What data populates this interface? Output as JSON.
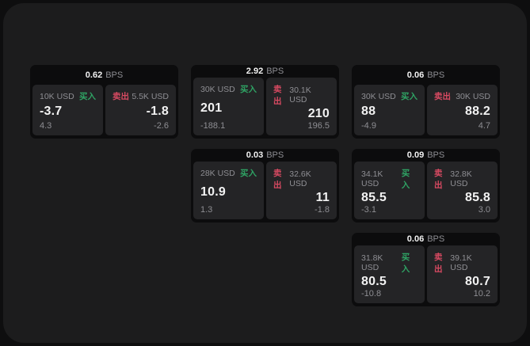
{
  "colors": {
    "bg_outer": "#0e0e0f",
    "bg_page": "#1c1c1d",
    "card_bg": "#0c0c0d",
    "panel_bg": "#242426",
    "text_primary": "#f2f2f2",
    "text_secondary": "#8e8e93",
    "buy_green": "#2fa364",
    "sell_red": "#d84a62"
  },
  "labels": {
    "bps": "BPS",
    "buy": "买入",
    "sell": "卖出"
  },
  "cards": [
    {
      "row": 1,
      "col": 1,
      "bps": "0.62",
      "buy": {
        "amount": "10K USD",
        "price": "-3.7",
        "delta": "4.3"
      },
      "sell": {
        "amount": "5.5K USD",
        "price": "-1.8",
        "delta": "-2.6"
      }
    },
    {
      "row": 1,
      "col": 2,
      "bps": "2.92",
      "buy": {
        "amount": "30K USD",
        "price": "201",
        "delta": "-188.1"
      },
      "sell": {
        "amount": "30.1K USD",
        "price": "210",
        "delta": "196.5"
      }
    },
    {
      "row": 1,
      "col": 3,
      "bps": "0.06",
      "buy": {
        "amount": "30K USD",
        "price": "88",
        "delta": "-4.9"
      },
      "sell": {
        "amount": "30K USD",
        "price": "88.2",
        "delta": "4.7"
      }
    },
    {
      "row": 2,
      "col": 2,
      "bps": "0.03",
      "buy": {
        "amount": "28K USD",
        "price": "10.9",
        "delta": "1.3"
      },
      "sell": {
        "amount": "32.6K USD",
        "price": "11",
        "delta": "-1.8"
      }
    },
    {
      "row": 2,
      "col": 3,
      "bps": "0.09",
      "buy": {
        "amount": "34.1K USD",
        "price": "85.5",
        "delta": "-3.1"
      },
      "sell": {
        "amount": "32.8K USD",
        "price": "85.8",
        "delta": "3.0"
      }
    },
    {
      "row": 3,
      "col": 3,
      "bps": "0.06",
      "buy": {
        "amount": "31.8K USD",
        "price": "80.5",
        "delta": "-10.8"
      },
      "sell": {
        "amount": "39.1K USD",
        "price": "80.7",
        "delta": "10.2"
      }
    }
  ]
}
